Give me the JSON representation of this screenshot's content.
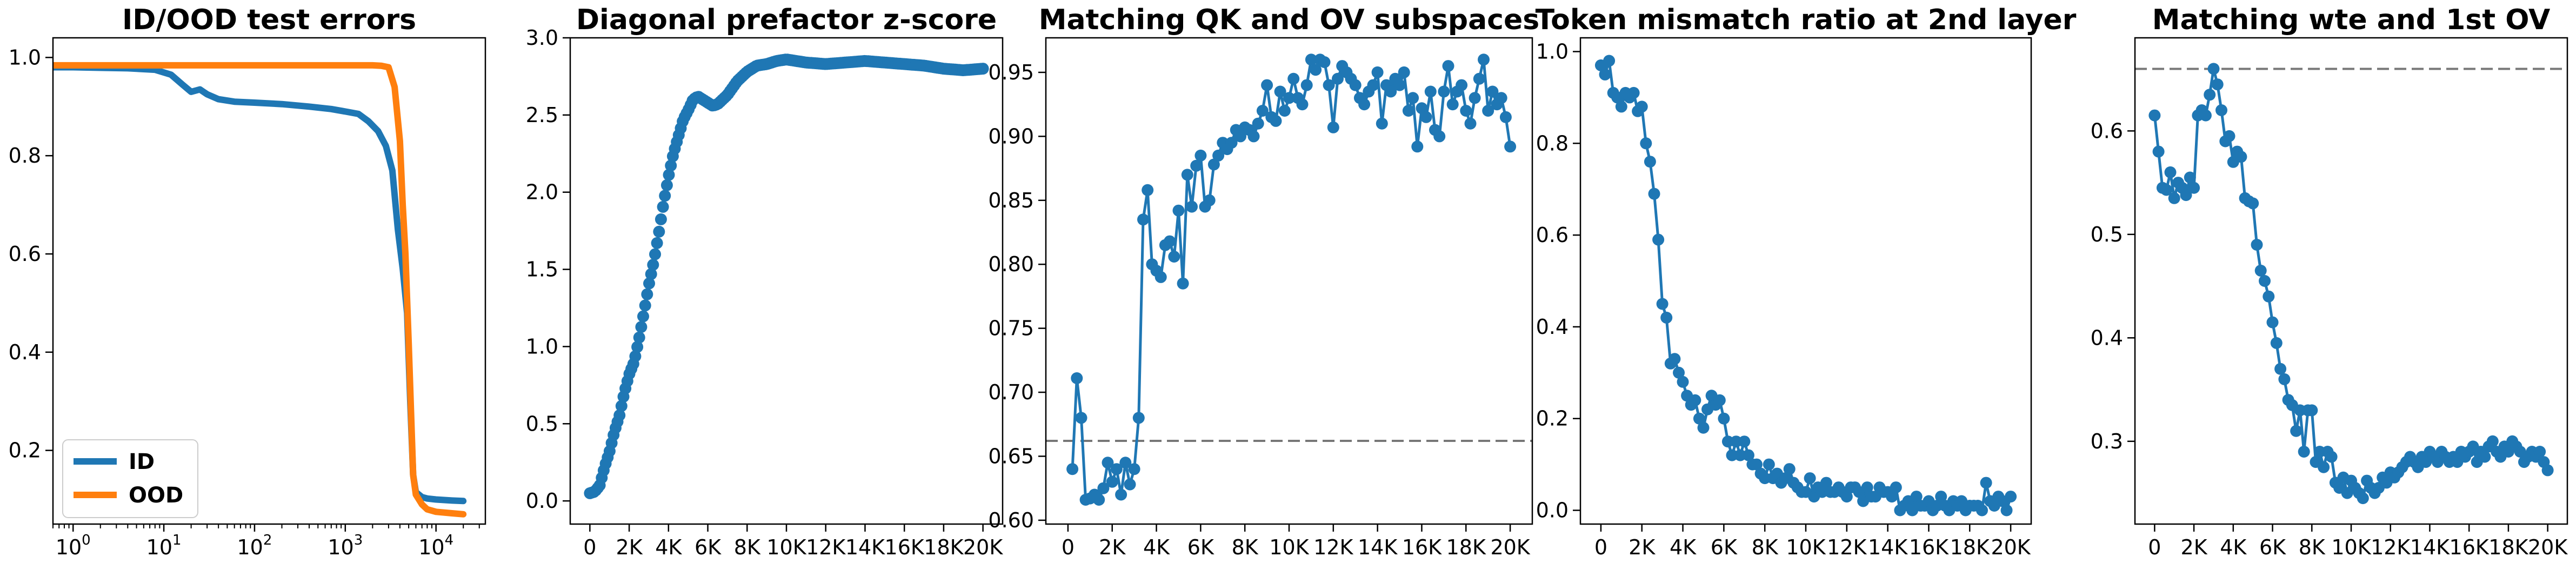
{
  "colors": {
    "blue": "#1f77b4",
    "orange": "#ff7f0e",
    "reference_line": "#777777"
  },
  "chart_data": [
    {
      "type": "line",
      "title": "ID/OOD test errors",
      "xscale": "log",
      "xlim": [
        0.6,
        35000
      ],
      "ylim": [
        0.05,
        1.04
      ],
      "xticks": [
        1,
        10,
        100,
        1000,
        10000
      ],
      "xtick_labels": [
        {
          "base": "10",
          "exp": "0"
        },
        {
          "base": "10",
          "exp": "1"
        },
        {
          "base": "10",
          "exp": "2"
        },
        {
          "base": "10",
          "exp": "3"
        },
        {
          "base": "10",
          "exp": "4"
        }
      ],
      "yticks": [
        0.2,
        0.4,
        0.6,
        0.8,
        1.0
      ],
      "ytick_labels": [
        "0.2",
        "0.4",
        "0.6",
        "0.8",
        "1.0"
      ],
      "legend_position": "lower-left",
      "series": [
        {
          "name": "ID",
          "color": "#1f77b4",
          "x": [
            0.6,
            1,
            2,
            4,
            8,
            12,
            16,
            20,
            25,
            30,
            40,
            60,
            100,
            200,
            400,
            700,
            1000,
            1400,
            1800,
            2300,
            2800,
            3300,
            3800,
            4300,
            4800,
            5200,
            5600,
            6000,
            7000,
            8000,
            10000,
            15000,
            20000
          ],
          "y": [
            0.98,
            0.98,
            0.979,
            0.978,
            0.975,
            0.965,
            0.945,
            0.93,
            0.935,
            0.925,
            0.915,
            0.91,
            0.908,
            0.905,
            0.9,
            0.895,
            0.89,
            0.885,
            0.87,
            0.85,
            0.82,
            0.77,
            0.65,
            0.57,
            0.48,
            0.3,
            0.15,
            0.115,
            0.105,
            0.102,
            0.1,
            0.098,
            0.097
          ]
        },
        {
          "name": "OOD",
          "color": "#ff7f0e",
          "x": [
            0.6,
            1,
            10,
            100,
            1000,
            2000,
            2500,
            3000,
            3500,
            4000,
            4300,
            4600,
            5000,
            5300,
            5600,
            6000,
            7000,
            8000,
            10000,
            15000,
            20000
          ],
          "y": [
            0.984,
            0.984,
            0.984,
            0.984,
            0.984,
            0.984,
            0.983,
            0.98,
            0.94,
            0.83,
            0.7,
            0.6,
            0.42,
            0.28,
            0.15,
            0.11,
            0.09,
            0.08,
            0.075,
            0.072,
            0.07
          ]
        }
      ]
    },
    {
      "type": "scatter",
      "title": "Diagonal prefactor z-score",
      "xlim": [
        -1000,
        21000
      ],
      "ylim": [
        -0.15,
        3.0
      ],
      "xticks": [
        0,
        2000,
        4000,
        6000,
        8000,
        10000,
        12000,
        14000,
        16000,
        18000,
        20000
      ],
      "xtick_labels": [
        "0",
        "2K",
        "4K",
        "6K",
        "8K",
        "10K",
        "12K",
        "14K",
        "16K",
        "18K",
        "20K"
      ],
      "yticks": [
        0,
        0.5,
        1.0,
        1.5,
        2.0,
        2.5,
        3.0
      ],
      "ytick_labels": [
        "0.0",
        "0.5",
        "1.0",
        "1.5",
        "2.0",
        "2.5",
        "3.0"
      ],
      "series": [
        {
          "color": "#1f77b4",
          "key_x": [
            0,
            250,
            500,
            750,
            1000,
            1250,
            1500,
            1750,
            2000,
            2250,
            2500,
            2750,
            3000,
            3250,
            3500,
            3750,
            4000,
            4250,
            4500,
            4750,
            5000,
            5250,
            5500,
            5750,
            6000,
            6250,
            6500,
            6750,
            7000,
            7500,
            8000,
            8500,
            9000,
            9500,
            10000,
            10500,
            11000,
            12000,
            13000,
            14000,
            15000,
            16000,
            17000,
            18000,
            19000,
            20000
          ],
          "key_y": [
            0.05,
            0.06,
            0.1,
            0.22,
            0.32,
            0.45,
            0.55,
            0.7,
            0.82,
            0.9,
            1.05,
            1.22,
            1.4,
            1.55,
            1.73,
            1.93,
            2.1,
            2.25,
            2.36,
            2.47,
            2.53,
            2.6,
            2.62,
            2.6,
            2.58,
            2.56,
            2.57,
            2.6,
            2.63,
            2.72,
            2.78,
            2.82,
            2.83,
            2.85,
            2.86,
            2.85,
            2.84,
            2.83,
            2.84,
            2.85,
            2.84,
            2.83,
            2.82,
            2.8,
            2.79,
            2.8
          ],
          "marker_count": 200
        }
      ]
    },
    {
      "type": "line",
      "title": "Matching QK and OV subspaces",
      "xlim": [
        -1000,
        21000
      ],
      "ylim": [
        0.597,
        0.977
      ],
      "xticks": [
        0,
        2000,
        4000,
        6000,
        8000,
        10000,
        12000,
        14000,
        16000,
        18000,
        20000
      ],
      "xtick_labels": [
        "0",
        "2K",
        "4K",
        "6K",
        "8K",
        "10K",
        "12K",
        "14K",
        "16K",
        "18K",
        "20K"
      ],
      "yticks": [
        0.6,
        0.65,
        0.7,
        0.75,
        0.8,
        0.85,
        0.9,
        0.95
      ],
      "ytick_labels": [
        "0.60",
        "0.65",
        "0.70",
        "0.75",
        "0.80",
        "0.85",
        "0.90",
        "0.95"
      ],
      "reference_line": 0.662,
      "series": [
        {
          "color": "#1f77b4",
          "x": [
            200,
            400,
            600,
            800,
            1000,
            1200,
            1400,
            1600,
            1800,
            2000,
            2200,
            2400,
            2600,
            2800,
            3000,
            3200,
            3400,
            3600,
            3800,
            4000,
            4200,
            4400,
            4600,
            4800,
            5000,
            5200,
            5400,
            5600,
            5800,
            6000,
            6200,
            6400,
            6600,
            6800,
            7000,
            7200,
            7400,
            7600,
            7800,
            8000,
            8200,
            8400,
            8600,
            8800,
            9000,
            9200,
            9400,
            9600,
            9800,
            10000,
            10200,
            10400,
            10600,
            10800,
            11000,
            11200,
            11400,
            11600,
            11800,
            12000,
            12200,
            12400,
            12600,
            12800,
            13000,
            13200,
            13400,
            13600,
            13800,
            14000,
            14200,
            14400,
            14600,
            14800,
            15000,
            15200,
            15400,
            15600,
            15800,
            16000,
            16200,
            16400,
            16600,
            16800,
            17000,
            17200,
            17400,
            17600,
            17800,
            18000,
            18200,
            18400,
            18600,
            18800,
            19000,
            19200,
            19400,
            19600,
            19800,
            20000
          ],
          "y": [
            0.64,
            0.711,
            0.68,
            0.616,
            0.617,
            0.62,
            0.616,
            0.625,
            0.645,
            0.63,
            0.64,
            0.62,
            0.645,
            0.628,
            0.64,
            0.68,
            0.835,
            0.858,
            0.8,
            0.795,
            0.79,
            0.815,
            0.818,
            0.806,
            0.842,
            0.785,
            0.87,
            0.845,
            0.877,
            0.885,
            0.845,
            0.85,
            0.878,
            0.885,
            0.895,
            0.89,
            0.895,
            0.905,
            0.9,
            0.907,
            0.905,
            0.9,
            0.91,
            0.92,
            0.94,
            0.915,
            0.912,
            0.935,
            0.92,
            0.93,
            0.945,
            0.93,
            0.925,
            0.94,
            0.96,
            0.952,
            0.96,
            0.958,
            0.94,
            0.907,
            0.945,
            0.955,
            0.95,
            0.945,
            0.94,
            0.93,
            0.925,
            0.935,
            0.94,
            0.95,
            0.91,
            0.94,
            0.935,
            0.945,
            0.94,
            0.95,
            0.92,
            0.93,
            0.892,
            0.922,
            0.915,
            0.935,
            0.905,
            0.9,
            0.935,
            0.955,
            0.925,
            0.935,
            0.94,
            0.92,
            0.91,
            0.93,
            0.945,
            0.96,
            0.92,
            0.935,
            0.925,
            0.93,
            0.915,
            0.892
          ]
        }
      ]
    },
    {
      "type": "line",
      "title": "Token mismatch ratio at 2nd layer",
      "xlim": [
        -1000,
        21000
      ],
      "ylim": [
        -0.03,
        1.03
      ],
      "xticks": [
        0,
        2000,
        4000,
        6000,
        8000,
        10000,
        12000,
        14000,
        16000,
        18000,
        20000
      ],
      "xtick_labels": [
        "0",
        "2K",
        "4K",
        "6K",
        "8K",
        "10K",
        "12K",
        "14K",
        "16K",
        "18K",
        "20K"
      ],
      "yticks": [
        0,
        0.2,
        0.4,
        0.6,
        0.8,
        1.0
      ],
      "ytick_labels": [
        "0.0",
        "0.2",
        "0.4",
        "0.6",
        "0.8",
        "1.0"
      ],
      "series": [
        {
          "color": "#1f77b4",
          "x": [
            0,
            200,
            400,
            600,
            800,
            1000,
            1200,
            1400,
            1600,
            1800,
            2000,
            2200,
            2400,
            2600,
            2800,
            3000,
            3200,
            3400,
            3600,
            3800,
            4000,
            4200,
            4400,
            4600,
            4800,
            5000,
            5200,
            5400,
            5600,
            5800,
            6000,
            6200,
            6400,
            6600,
            6800,
            7000,
            7200,
            7400,
            7600,
            7800,
            8000,
            8200,
            8400,
            8600,
            8800,
            9000,
            9200,
            9400,
            9600,
            9800,
            10000,
            10200,
            10400,
            10600,
            10800,
            11000,
            11200,
            11400,
            11600,
            11800,
            12000,
            12200,
            12400,
            12600,
            12800,
            13000,
            13200,
            13400,
            13600,
            13800,
            14000,
            14200,
            14400,
            14600,
            14800,
            15000,
            15200,
            15400,
            15600,
            15800,
            16000,
            16200,
            16400,
            16600,
            16800,
            17000,
            17200,
            17400,
            17600,
            17800,
            18000,
            18200,
            18400,
            18600,
            18800,
            19000,
            19200,
            19400,
            19600,
            19800,
            20000
          ],
          "y": [
            0.97,
            0.95,
            0.98,
            0.91,
            0.9,
            0.88,
            0.91,
            0.9,
            0.91,
            0.87,
            0.88,
            0.8,
            0.76,
            0.69,
            0.59,
            0.45,
            0.42,
            0.32,
            0.33,
            0.3,
            0.28,
            0.25,
            0.23,
            0.24,
            0.2,
            0.18,
            0.22,
            0.25,
            0.23,
            0.24,
            0.2,
            0.15,
            0.12,
            0.15,
            0.12,
            0.15,
            0.12,
            0.1,
            0.1,
            0.08,
            0.07,
            0.1,
            0.07,
            0.08,
            0.06,
            0.07,
            0.09,
            0.06,
            0.05,
            0.04,
            0.04,
            0.07,
            0.03,
            0.05,
            0.04,
            0.06,
            0.04,
            0.04,
            0.05,
            0.04,
            0.03,
            0.05,
            0.05,
            0.04,
            0.02,
            0.05,
            0.03,
            0.03,
            0.05,
            0.04,
            0.04,
            0.03,
            0.05,
            0.0,
            0.01,
            0.02,
            0.0,
            0.03,
            0.01,
            0.01,
            0.02,
            0.0,
            0.01,
            0.03,
            0.01,
            0.0,
            0.02,
            0.01,
            0.02,
            0.0,
            0.01,
            0.01,
            0.01,
            0.0,
            0.06,
            0.02,
            0.01,
            0.03,
            0.02,
            0.0,
            0.03
          ]
        }
      ]
    },
    {
      "type": "line",
      "title": "Matching wte and 1st OV",
      "xlim": [
        -1000,
        21000
      ],
      "ylim": [
        0.22,
        0.69
      ],
      "xticks": [
        0,
        2000,
        4000,
        6000,
        8000,
        10000,
        12000,
        14000,
        16000,
        18000,
        20000
      ],
      "xtick_labels": [
        "0",
        "2K",
        "4K",
        "6K",
        "8K",
        "10K",
        "12K",
        "14K",
        "16K",
        "18K",
        "20K"
      ],
      "yticks": [
        0.3,
        0.4,
        0.5,
        0.6
      ],
      "ytick_labels": [
        "0.3",
        "0.4",
        "0.5",
        "0.6"
      ],
      "reference_line": 0.66,
      "series": [
        {
          "color": "#1f77b4",
          "x": [
            0,
            200,
            400,
            600,
            800,
            1000,
            1200,
            1400,
            1600,
            1800,
            2000,
            2200,
            2400,
            2600,
            2800,
            3000,
            3200,
            3400,
            3600,
            3800,
            4000,
            4200,
            4400,
            4600,
            4800,
            5000,
            5200,
            5400,
            5600,
            5800,
            6000,
            6200,
            6400,
            6600,
            6800,
            7000,
            7200,
            7400,
            7600,
            7800,
            8000,
            8200,
            8400,
            8600,
            8800,
            9000,
            9200,
            9400,
            9600,
            9800,
            10000,
            10200,
            10400,
            10600,
            10800,
            11000,
            11200,
            11400,
            11600,
            11800,
            12000,
            12200,
            12400,
            12600,
            12800,
            13000,
            13200,
            13400,
            13600,
            13800,
            14000,
            14200,
            14400,
            14600,
            14800,
            15000,
            15200,
            15400,
            15600,
            15800,
            16000,
            16200,
            16400,
            16600,
            16800,
            17000,
            17200,
            17400,
            17600,
            17800,
            18000,
            18200,
            18400,
            18600,
            18800,
            19000,
            19200,
            19400,
            19600,
            19800,
            20000
          ],
          "y": [
            0.615,
            0.58,
            0.545,
            0.543,
            0.56,
            0.535,
            0.55,
            0.545,
            0.538,
            0.555,
            0.545,
            0.615,
            0.62,
            0.615,
            0.635,
            0.66,
            0.645,
            0.62,
            0.59,
            0.595,
            0.57,
            0.58,
            0.575,
            0.535,
            0.532,
            0.53,
            0.49,
            0.465,
            0.455,
            0.44,
            0.415,
            0.395,
            0.37,
            0.36,
            0.34,
            0.335,
            0.31,
            0.33,
            0.29,
            0.33,
            0.33,
            0.28,
            0.29,
            0.275,
            0.29,
            0.285,
            0.26,
            0.255,
            0.265,
            0.25,
            0.262,
            0.255,
            0.25,
            0.245,
            0.262,
            0.255,
            0.25,
            0.255,
            0.265,
            0.26,
            0.27,
            0.265,
            0.27,
            0.275,
            0.28,
            0.285,
            0.28,
            0.275,
            0.285,
            0.28,
            0.29,
            0.285,
            0.28,
            0.29,
            0.285,
            0.28,
            0.285,
            0.28,
            0.29,
            0.285,
            0.29,
            0.295,
            0.28,
            0.29,
            0.285,
            0.295,
            0.3,
            0.29,
            0.285,
            0.295,
            0.29,
            0.3,
            0.295,
            0.29,
            0.28,
            0.285,
            0.29,
            0.285,
            0.29,
            0.28,
            0.272
          ]
        }
      ]
    }
  ]
}
